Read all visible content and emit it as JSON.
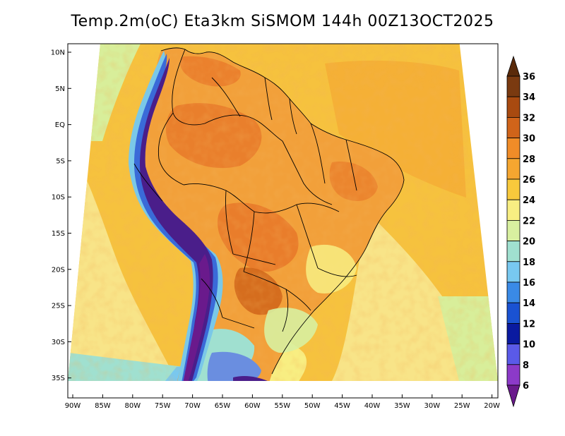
{
  "title": "Temp.2m(oC) Eta3km SiSMOM 144h 00Z13OCT2025",
  "lat_labels": [
    "10N",
    "5N",
    "EQ",
    "5S",
    "10S",
    "15S",
    "20S",
    "25S",
    "30S",
    "35S"
  ],
  "lon_labels": [
    "90W",
    "85W",
    "80W",
    "75W",
    "70W",
    "65W",
    "60W",
    "55W",
    "50W",
    "45W",
    "40W",
    "35W",
    "30W",
    "25W",
    "20W"
  ],
  "colorbar": {
    "labels": [
      "36",
      "34",
      "32",
      "30",
      "28",
      "26",
      "24",
      "22",
      "20",
      "18",
      "16",
      "14",
      "12",
      "10",
      "8",
      "6"
    ],
    "colors": [
      "#5a2a0a",
      "#7a3a10",
      "#a84a10",
      "#d0641a",
      "#f08c28",
      "#f5a630",
      "#f8c93c",
      "#f8ee82",
      "#d8f0a0",
      "#a0e0d0",
      "#78c8f0",
      "#3a8ae6",
      "#1a52d2",
      "#0a1aa0",
      "#5a5ae8",
      "#8c3ac8",
      "#6a1a8c"
    ],
    "top_arrow_color": "#5a2a0a",
    "bottom_arrow_color": "#6a1a8c"
  },
  "palette": {
    "ocean_warm": "#f6c23e",
    "ocean_cool": "#f8e488",
    "coast_cool": "#d8ee9a",
    "land_base": "#f2a03a",
    "land_hot": "#e8792a",
    "andes_cold": "#4a1e8a",
    "andes_mid": "#3a6ad8",
    "andes_edge": "#7ac8e8",
    "south_cold": "#6a8ee0",
    "border": "#000000"
  }
}
